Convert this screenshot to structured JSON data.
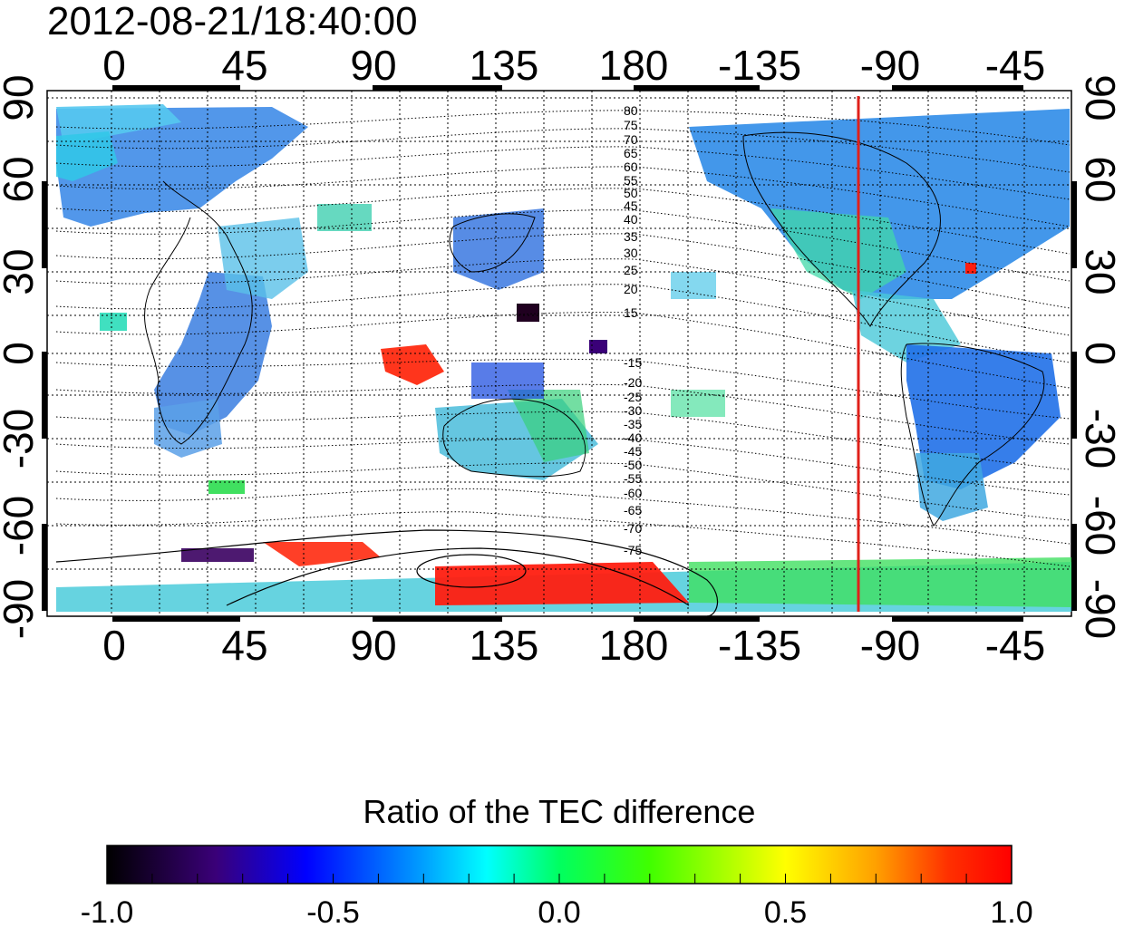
{
  "timestamp": "2012-08-21/18:40:00",
  "map": {
    "top_axis_labels": [
      "0",
      "45",
      "90",
      "135",
      "180",
      "-135",
      "-90",
      "-45"
    ],
    "bottom_axis_labels": [
      "0",
      "45",
      "90",
      "135",
      "180",
      "-135",
      "-90",
      "-45"
    ],
    "left_axis_labels": [
      "90",
      "60",
      "30",
      "0",
      "-30",
      "-60",
      "-90"
    ],
    "right_axis_labels": [
      "90",
      "60",
      "30",
      "0",
      "-30",
      "-60",
      "-90"
    ],
    "contour_labels_north": [
      "80",
      "75",
      "70",
      "65",
      "60",
      "55",
      "50",
      "45",
      "40",
      "35",
      "30",
      "25",
      "20",
      "15"
    ],
    "contour_labels_south": [
      "-15",
      "-20",
      "-25",
      "-30",
      "-35",
      "-40",
      "-45",
      "-50",
      "-55",
      "-60",
      "-65",
      "-70",
      "-75"
    ],
    "marker_line_longitude": -99,
    "marker_line_color": "#e0201a"
  },
  "colorbar": {
    "title": "Ratio of the TEC difference",
    "tick_labels": [
      "-1.0",
      "-0.5",
      "0.0",
      "0.5",
      "1.0"
    ],
    "range": [
      -1.0,
      1.0
    ],
    "colors": [
      "#000000",
      "#3a0078",
      "#0000ff",
      "#00a0ff",
      "#00ffff",
      "#00ff60",
      "#40ff00",
      "#ffff00",
      "#ffa000",
      "#ff3000",
      "#ff0000"
    ]
  }
}
